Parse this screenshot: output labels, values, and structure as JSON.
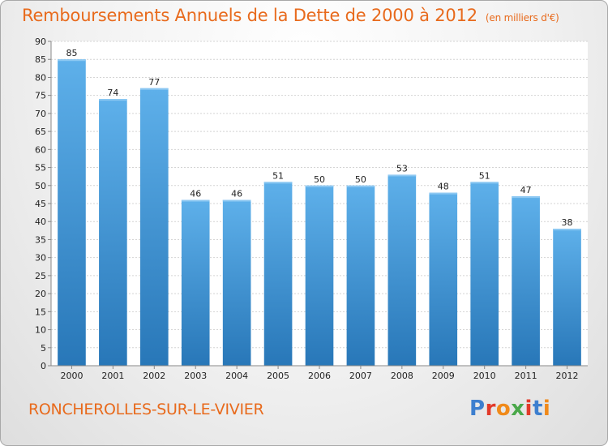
{
  "header": {
    "title": "Remboursements Annuels de la Dette de 2000 à 2012",
    "unit": "(en milliers d'€)"
  },
  "footer": {
    "place": "RONCHEROLLES-SUR-LE-VIVIER",
    "logo": "Proxiti"
  },
  "colors": {
    "bar_top": "#5eb0ea",
    "bar_bottom": "#2877b8",
    "title": "#e86a1c"
  },
  "chart_data": {
    "type": "bar",
    "categories": [
      "2000",
      "2001",
      "2002",
      "2003",
      "2004",
      "2005",
      "2006",
      "2007",
      "2008",
      "2009",
      "2010",
      "2011",
      "2012"
    ],
    "values": [
      85,
      74,
      77,
      46,
      46,
      51,
      50,
      50,
      53,
      48,
      51,
      47,
      38
    ],
    "ylim": [
      0,
      90
    ],
    "yticks": [
      0,
      5,
      10,
      15,
      20,
      25,
      30,
      35,
      40,
      45,
      50,
      55,
      60,
      65,
      70,
      75,
      80,
      85,
      90
    ],
    "grid": true,
    "legend": "none"
  }
}
